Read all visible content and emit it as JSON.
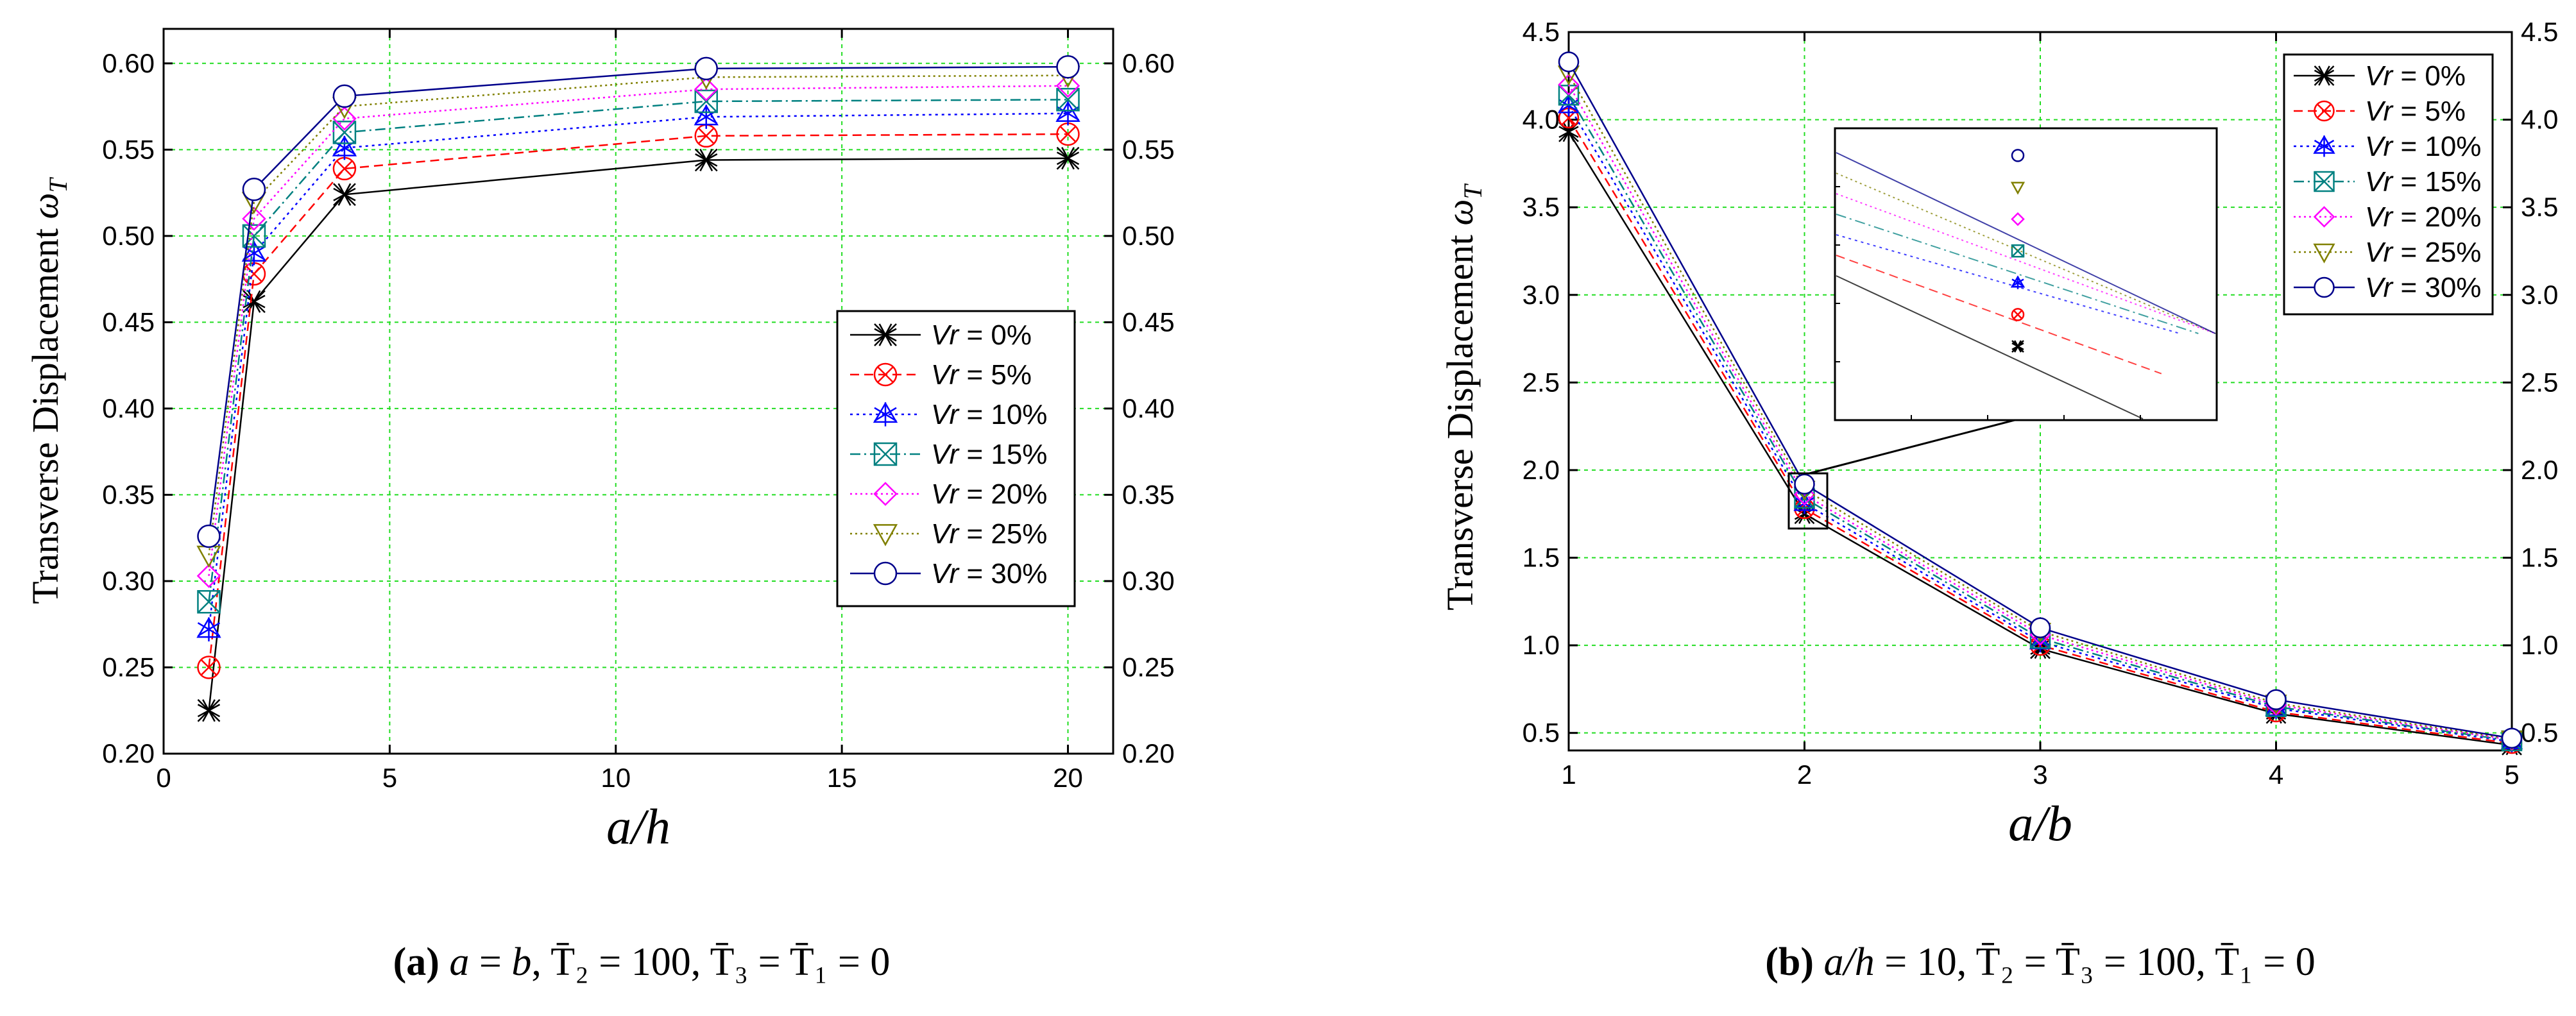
{
  "chart_data": [
    {
      "type": "line",
      "ylabel": "Transverse Displacement",
      "ylabel_symbol": "ω",
      "ylabel_sub": "T",
      "xlabel": "a/h",
      "xlim": [
        0,
        21
      ],
      "ylim": [
        0.2,
        0.62
      ],
      "xticks": [
        0,
        5,
        10,
        15,
        20
      ],
      "yticks": [
        0.2,
        0.25,
        0.3,
        0.35,
        0.4,
        0.45,
        0.5,
        0.55,
        0.6
      ],
      "grid": true,
      "legend_position": "center-right",
      "x": [
        1,
        2,
        4,
        12,
        20
      ],
      "series": [
        {
          "name": "Vr = 0%",
          "values": [
            0.225,
            0.462,
            0.524,
            0.544,
            0.545
          ]
        },
        {
          "name": "Vr = 5%",
          "values": [
            0.25,
            0.478,
            0.539,
            0.558,
            0.559
          ]
        },
        {
          "name": "Vr = 10%",
          "values": [
            0.272,
            0.49,
            0.551,
            0.569,
            0.571
          ]
        },
        {
          "name": "Vr = 15%",
          "values": [
            0.288,
            0.5,
            0.56,
            0.578,
            0.579
          ]
        },
        {
          "name": "Vr = 20%",
          "values": [
            0.303,
            0.51,
            0.568,
            0.585,
            0.587
          ]
        },
        {
          "name": "Vr = 25%",
          "values": [
            0.315,
            0.52,
            0.575,
            0.592,
            0.593
          ]
        },
        {
          "name": "Vr = 30%",
          "values": [
            0.326,
            0.527,
            0.581,
            0.597,
            0.598
          ]
        }
      ],
      "caption": {
        "label": "(a)",
        "part1": "a",
        "part2": " = ",
        "part3": "b",
        "part4": ",  T̄₂ = 100,  T̄₃ = T̄₁ = 0"
      }
    },
    {
      "type": "line",
      "ylabel": "Transverse Displacement",
      "ylabel_symbol": "ω",
      "ylabel_sub": "T",
      "xlabel": "a/b",
      "xlim": [
        1,
        5
      ],
      "ylim": [
        0.4,
        4.5
      ],
      "xticks": [
        1,
        2,
        3,
        4,
        5
      ],
      "yticks": [
        0.5,
        1.0,
        1.5,
        2.0,
        2.5,
        3.0,
        3.5,
        4.0,
        4.5
      ],
      "grid": true,
      "legend_position": "top-right",
      "inset": "zoomed view near a/b = 2",
      "x": [
        1,
        2,
        3,
        4,
        5
      ],
      "series": [
        {
          "name": "Vr = 0%",
          "values": [
            3.93,
            1.75,
            0.98,
            0.61,
            0.43
          ]
        },
        {
          "name": "Vr = 5%",
          "values": [
            4.01,
            1.78,
            1.0,
            0.62,
            0.44
          ]
        },
        {
          "name": "Vr = 10%",
          "values": [
            4.08,
            1.81,
            1.02,
            0.64,
            0.45
          ]
        },
        {
          "name": "Vr = 15%",
          "values": [
            4.14,
            1.84,
            1.04,
            0.65,
            0.455
          ]
        },
        {
          "name": "Vr = 20%",
          "values": [
            4.2,
            1.86,
            1.06,
            0.66,
            0.46
          ]
        },
        {
          "name": "Vr = 25%",
          "values": [
            4.26,
            1.89,
            1.08,
            0.67,
            0.465
          ]
        },
        {
          "name": "Vr = 30%",
          "values": [
            4.33,
            1.92,
            1.1,
            0.69,
            0.47
          ]
        }
      ],
      "caption": {
        "label": "(b)",
        "part1": "a/h",
        "part2": " = 10,  T̄₂ = T̄₃ = 100,  T̄₁ = 0",
        "part3": "",
        "part4": ""
      }
    }
  ],
  "series_style": [
    {
      "color": "#000000",
      "dash": "",
      "marker": "xx"
    },
    {
      "color": "#ff0000",
      "dash": "14,8",
      "marker": "circlex"
    },
    {
      "color": "#0000ff",
      "dash": "4,6",
      "marker": "star"
    },
    {
      "color": "#008080",
      "dash": "16,6,3,6",
      "marker": "squarex"
    },
    {
      "color": "#ff00ff",
      "dash": "3,5",
      "marker": "diamond"
    },
    {
      "color": "#808000",
      "dash": "3,5",
      "marker": "tridown"
    },
    {
      "color": "#00008b",
      "dash": "",
      "marker": "circle"
    }
  ],
  "grid_color": "#22dd22"
}
